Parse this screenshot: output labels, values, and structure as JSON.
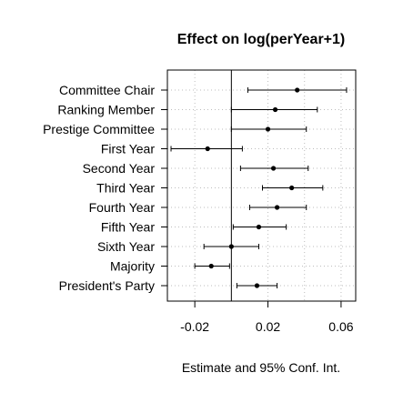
{
  "chart_data": {
    "type": "dot-and-whisker",
    "title": "Effect on log(perYear+1)",
    "xlabel": "Estimate and 95% Conf. Int.",
    "ylabel": "",
    "xlim": [
      -0.035,
      0.068
    ],
    "xticks": [
      -0.02,
      0.02,
      0.06
    ],
    "xtick_labels": [
      "-0.02",
      "0.02",
      "0.06"
    ],
    "reference_line": 0,
    "grid": "dotted vertical",
    "categories": [
      "Committee Chair",
      "Ranking Member",
      "Prestige Committee",
      "First Year",
      "Second Year",
      "Third Year",
      "Fourth Year",
      "Fifth Year",
      "Sixth Year",
      "Majority",
      "President's Party"
    ],
    "estimates": [
      0.036,
      0.024,
      0.02,
      -0.013,
      0.023,
      0.033,
      0.025,
      0.015,
      0.0,
      -0.011,
      0.014
    ],
    "lower": [
      0.009,
      0.0,
      0.0,
      -0.033,
      0.005,
      0.017,
      0.01,
      0.001,
      -0.015,
      -0.02,
      0.003
    ],
    "upper": [
      0.063,
      0.047,
      0.041,
      0.006,
      0.042,
      0.05,
      0.041,
      0.03,
      0.015,
      -0.001,
      0.025
    ]
  }
}
